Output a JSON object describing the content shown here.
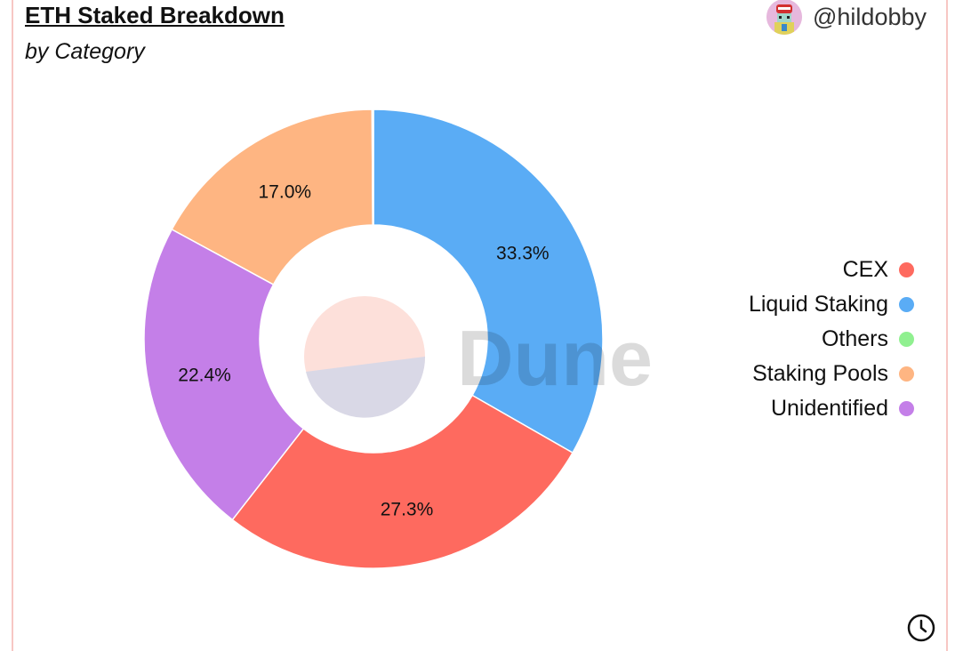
{
  "header": {
    "title": "ETH Staked Breakdown",
    "subtitle": "by Category",
    "author": "@hildobby"
  },
  "watermark": "Dune",
  "icons": {
    "avatar": "avatar-icon",
    "refresh": "clock-icon"
  },
  "chart_data": {
    "type": "pie",
    "variant": "donut",
    "title": "ETH Staked Breakdown",
    "subtitle": "by Category",
    "legend_position": "right",
    "slices": [
      {
        "label": "Liquid Staking",
        "value": 33.3,
        "display": "33.3%",
        "color": "#5aacf5"
      },
      {
        "label": "CEX",
        "value": 27.3,
        "display": "27.3%",
        "color": "#fe6a5f"
      },
      {
        "label": "Unidentified",
        "value": 22.4,
        "display": "22.4%",
        "color": "#c47fe8"
      },
      {
        "label": "Staking Pools",
        "value": 17.0,
        "display": "17.0%",
        "color": "#feb582"
      },
      {
        "label": "Others",
        "value": 0.1,
        "display": "",
        "color": "#90f090"
      }
    ],
    "legend": [
      {
        "label": "CEX",
        "color": "#fe6a5f"
      },
      {
        "label": "Liquid Staking",
        "color": "#5aacf5"
      },
      {
        "label": "Others",
        "color": "#90f090"
      },
      {
        "label": "Staking Pools",
        "color": "#feb582"
      },
      {
        "label": "Unidentified",
        "color": "#c47fe8"
      }
    ]
  }
}
